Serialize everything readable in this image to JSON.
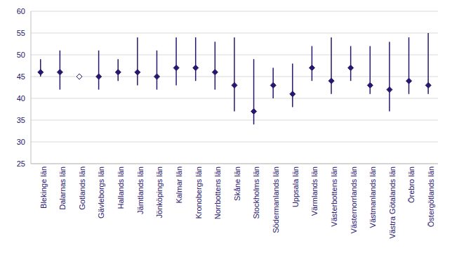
{
  "chart_data": {
    "type": "dot_range",
    "categories": [
      "Blekinge län",
      "Dalarnas län",
      "Gotlands län",
      "Gävleborgs län",
      "Hallands län",
      "Jämtlands län",
      "Jönköpings län",
      "Kalmar län",
      "Kronobergs län",
      "Norrbottens län",
      "Skåne län",
      "Stockholms län",
      "Södermanlands län",
      "Uppsala län",
      "Värmlands län",
      "Västerbottens län",
      "Västernorrlands län",
      "Västmanlands län",
      "Västra Götalands län",
      "Örebro län",
      "Östergötlands län"
    ],
    "series": [
      {
        "marker": "diamond",
        "color": "#28166f",
        "values": [
          46,
          46,
          null,
          45,
          46,
          46,
          45,
          47,
          47,
          46,
          43,
          37,
          43,
          41,
          47,
          44,
          47,
          43,
          42,
          44,
          43
        ]
      },
      {
        "marker": "diamond_open",
        "color": "#28166f",
        "values": [
          null,
          null,
          45,
          null,
          null,
          null,
          null,
          null,
          null,
          null,
          null,
          null,
          null,
          null,
          null,
          null,
          null,
          null,
          null,
          null,
          null
        ]
      }
    ],
    "low": [
      45,
      42,
      45,
      42,
      44,
      43,
      42,
      43,
      44,
      42,
      37,
      34,
      40,
      38,
      44,
      41,
      44,
      41,
      37,
      41,
      41
    ],
    "high": [
      49,
      51,
      45,
      51,
      49,
      54,
      51,
      54,
      54,
      53,
      54,
      49,
      47,
      48,
      52,
      54,
      52,
      52,
      53,
      54,
      55
    ],
    "color": "#28166f",
    "ylim": [
      25,
      60
    ],
    "yticks": [
      25,
      30,
      35,
      40,
      45,
      50,
      55,
      60
    ],
    "grid": true
  }
}
